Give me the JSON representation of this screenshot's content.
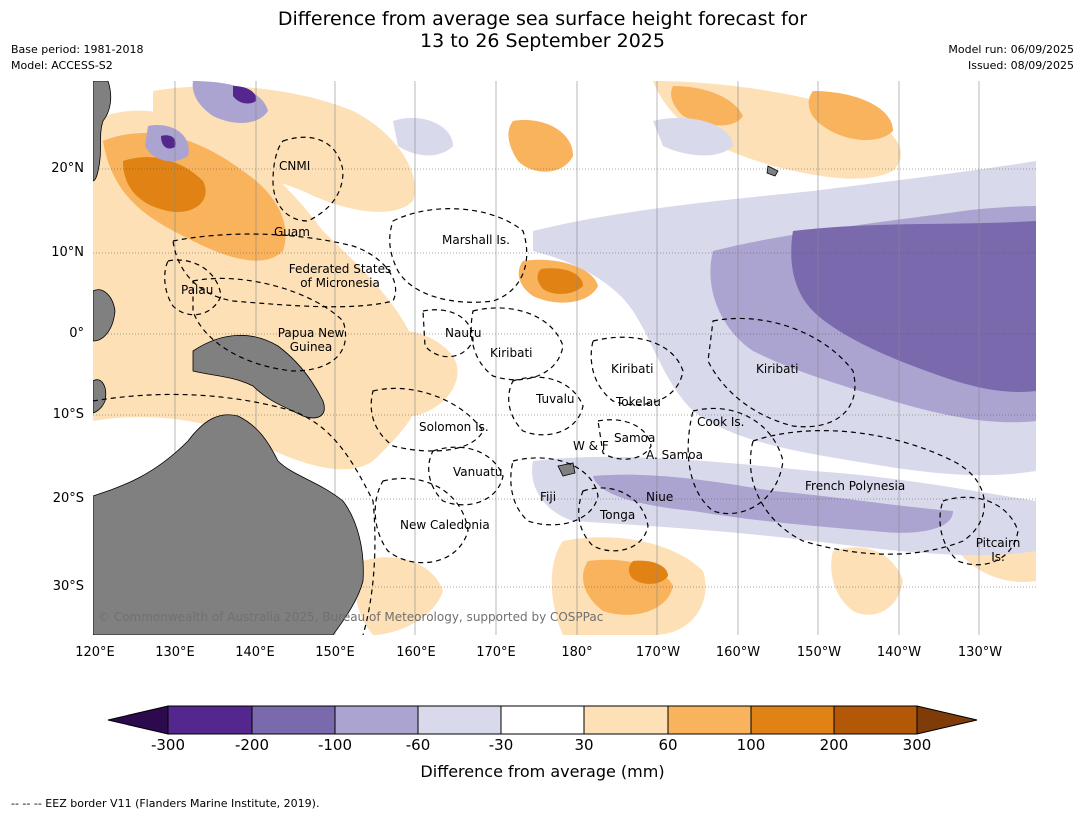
{
  "title_line1": "Difference from average sea surface height forecast for",
  "title_line2": "13 to 26 September 2025",
  "meta": {
    "base_period": "Base period: 1981-2018",
    "model": "Model: ACCESS-S2",
    "model_run": "Model run: 06/09/2025",
    "issued": "Issued: 08/09/2025"
  },
  "lat_labels": [
    "20°N",
    "10°N",
    "0°",
    "10°S",
    "20°S",
    "30°S"
  ],
  "lon_labels": [
    "120°E",
    "130°E",
    "140°E",
    "150°E",
    "160°E",
    "170°E",
    "180°",
    "170°W",
    "160°W",
    "150°W",
    "140°W",
    "130°W"
  ],
  "places": {
    "cnmi": "CNMI",
    "guam": "Guam",
    "marshall": "Marshall Is.",
    "fsm1": "Federated States",
    "fsm2": "of Micronesia",
    "palau": "Palau",
    "nauru": "Nauru",
    "png1": "Papua New",
    "png2": "Guinea",
    "kiribati_w": "Kiribati",
    "kiribati_c": "Kiribati",
    "kiribati_e": "Kiribati",
    "tuvalu": "Tuvalu",
    "tokelau": "Tokelau",
    "cook": "Cook Is.",
    "solomon": "Solomon Is.",
    "wf": "W & F",
    "samoa": "Samoa",
    "asamoa": "A. Samoa",
    "vanuatu": "Vanuatu",
    "fiji": "Fiji",
    "niue": "Niue",
    "frenchpoly": "French Polynesia",
    "tonga": "Tonga",
    "newcal": "New Caledonia",
    "pitcairn1": "Pitcairn",
    "pitcairn2": "Is."
  },
  "copyright": "© Commonwealth of Australia 2025, Bureau of Meteorology, supported by COSPPac",
  "colorbar": {
    "ticks": [
      "-300",
      "-200",
      "-100",
      "-60",
      "-30",
      "30",
      "60",
      "100",
      "200",
      "300"
    ],
    "colors": [
      "#2d0a4e",
      "#54278f",
      "#7a6aad",
      "#aba4d0",
      "#d9d9ec",
      "#ffffff",
      "#fde0b6",
      "#f9b35c",
      "#e08214",
      "#b35806",
      "#7f3b08"
    ],
    "label": "Difference from average (mm)"
  },
  "footer": "--  --  -- EEZ border V11 (Flanders Marine Institute, 2019)."
}
